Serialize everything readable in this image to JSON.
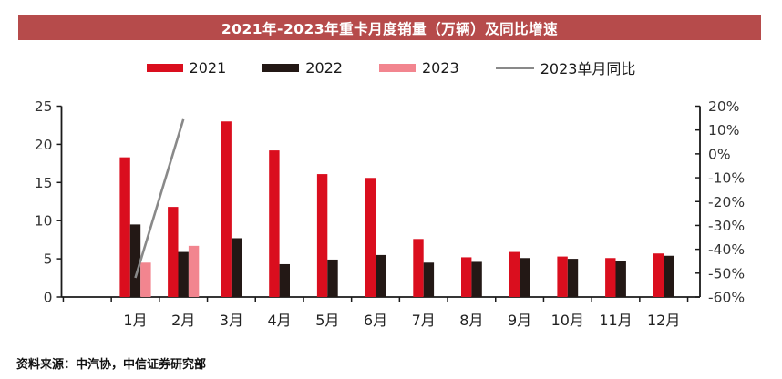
{
  "title": "2021年-2023年重卡月度销量（万辆）及同比增速",
  "source": "资料来源：中汽协，中信证券研究部",
  "colors": {
    "banner": "#B64B4B",
    "bar_2021": "#DA0E1E",
    "bar_2022": "#231815",
    "bar_2023": "#F2858F",
    "yoy_line": "#898989",
    "axis": "#1a1a1a",
    "tick_text": "#333333"
  },
  "legend": [
    {
      "label": "2021",
      "type": "bar",
      "color": "#DA0E1E"
    },
    {
      "label": "2022",
      "type": "bar",
      "color": "#231815"
    },
    {
      "label": "2023",
      "type": "bar",
      "color": "#F2858F"
    },
    {
      "label": "2023单月同比",
      "type": "line",
      "color": "#898989"
    }
  ],
  "chart_data": {
    "type": "bar+line",
    "title": "2021年-2023年重卡月度销量（万辆）及同比增速",
    "categories": [
      "1月",
      "2月",
      "3月",
      "4月",
      "5月",
      "6月",
      "7月",
      "8月",
      "9月",
      "10月",
      "11月",
      "12月"
    ],
    "series": [
      {
        "name": "2021",
        "type": "bar",
        "axis": "left",
        "color": "#DA0E1E",
        "values": [
          18.3,
          11.8,
          23.0,
          19.2,
          16.1,
          15.6,
          7.6,
          5.2,
          5.9,
          5.3,
          5.1,
          5.7
        ]
      },
      {
        "name": "2022",
        "type": "bar",
        "axis": "left",
        "color": "#231815",
        "values": [
          9.5,
          5.9,
          7.7,
          4.3,
          4.9,
          5.5,
          4.5,
          4.6,
          5.1,
          5.0,
          4.7,
          5.4
        ]
      },
      {
        "name": "2023",
        "type": "bar",
        "axis": "left",
        "color": "#F2858F",
        "values": [
          4.5,
          6.7,
          null,
          null,
          null,
          null,
          null,
          null,
          null,
          null,
          null,
          null
        ]
      },
      {
        "name": "2023单月同比",
        "type": "line",
        "axis": "right",
        "color": "#898989",
        "values": [
          -52,
          14.5,
          null,
          null,
          null,
          null,
          null,
          null,
          null,
          null,
          null,
          null
        ]
      }
    ],
    "left_axis": {
      "min": 0,
      "max": 25,
      "step": 5,
      "tick_labels": [
        "0",
        "5",
        "10",
        "15",
        "20",
        "25"
      ]
    },
    "right_axis": {
      "min": -60,
      "max": 20,
      "step": 10,
      "tick_labels": [
        "20%",
        "10%",
        "0%",
        "-10%",
        "-20%",
        "-30%",
        "-40%",
        "-50%",
        "-60%"
      ]
    },
    "grid": false,
    "legend_position": "top"
  }
}
